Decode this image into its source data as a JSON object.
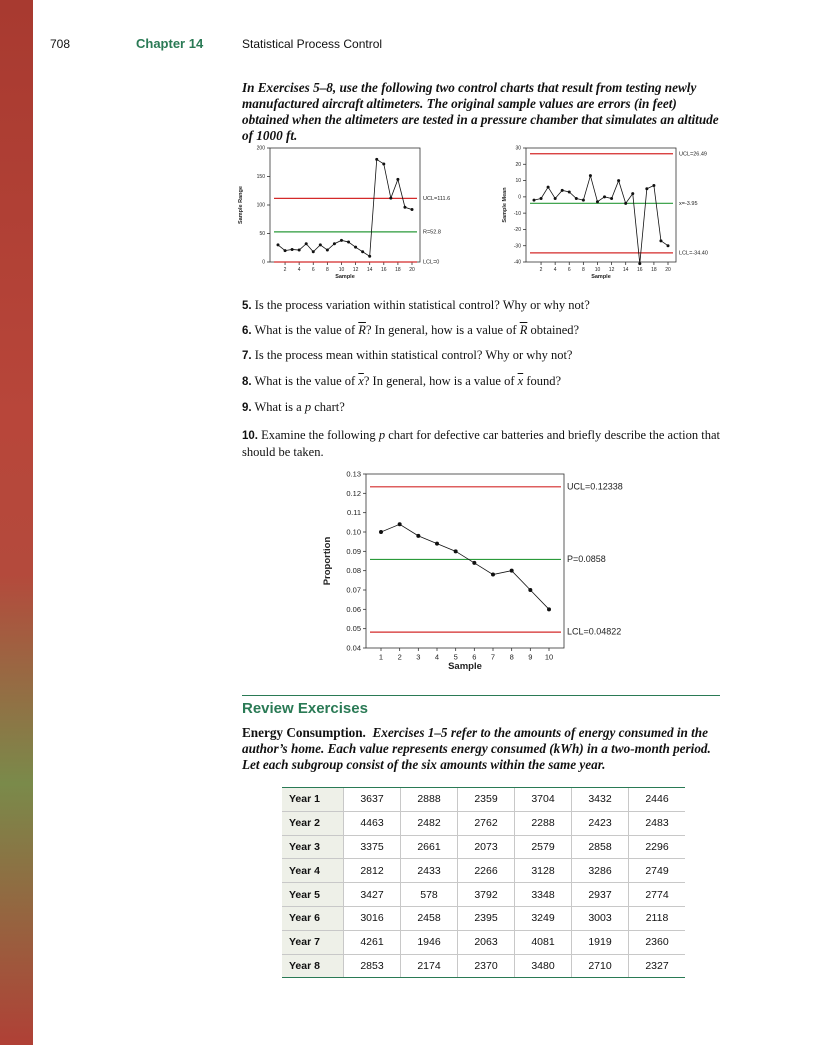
{
  "header": {
    "page_number": "708",
    "chapter": "Chapter 14",
    "title": "Statistical Process Control"
  },
  "intro": "In Exercises 5–8, use the following two control charts that result from testing newly manufactured aircraft altimeters. The original sample values are errors (in feet) obtained when the altimeters are tested in a pressure chamber that simulates an altitude of 1000 ft.",
  "questions": {
    "q5": {
      "num": "5.",
      "text": "Is the process variation within statistical control? Why or why not?"
    },
    "q6": {
      "num": "6.",
      "a": "What is the value of ",
      "sym": "R",
      "b": "? In general, how is a value of ",
      "sym2": "R",
      "c": " obtained?"
    },
    "q7": {
      "num": "7.",
      "text": "Is the process mean within statistical control? Why or why not?"
    },
    "q8": {
      "num": "8.",
      "a": "What is the value of ",
      "sym": "x",
      "b": "? In general, how is a value of ",
      "sym2": "x",
      "c": " found?"
    },
    "q9": {
      "num": "9.",
      "a": "What is a ",
      "sym": "p",
      "b": " chart?"
    },
    "q10": {
      "num": "10.",
      "a": "Examine the following ",
      "sym": "p",
      "b": " chart for defective car batteries and briefly describe the action that should be taken."
    }
  },
  "review": {
    "heading": "Review Exercises",
    "lead": "Energy Consumption.",
    "text": "Exercises 1–5 refer to the amounts of energy consumed in the author’s home. Each value represents energy consumed (kWh) in a two-month period. Let each subgroup consist of the six amounts within the same year.",
    "table": [
      {
        "label": "Year 1",
        "values": [
          "3637",
          "2888",
          "2359",
          "3704",
          "3432",
          "2446"
        ]
      },
      {
        "label": "Year 2",
        "values": [
          "4463",
          "2482",
          "2762",
          "2288",
          "2423",
          "2483"
        ]
      },
      {
        "label": "Year 3",
        "values": [
          "3375",
          "2661",
          "2073",
          "2579",
          "2858",
          "2296"
        ]
      },
      {
        "label": "Year 4",
        "values": [
          "2812",
          "2433",
          "2266",
          "3128",
          "3286",
          "2749"
        ]
      },
      {
        "label": "Year 5",
        "values": [
          "3427",
          "578",
          "3792",
          "3348",
          "2937",
          "2774"
        ]
      },
      {
        "label": "Year 6",
        "values": [
          "3016",
          "2458",
          "2395",
          "3249",
          "3003",
          "2118"
        ]
      },
      {
        "label": "Year 7",
        "values": [
          "4261",
          "1946",
          "2063",
          "4081",
          "1919",
          "2360"
        ]
      },
      {
        "label": "Year 8",
        "values": [
          "2853",
          "2174",
          "2370",
          "3480",
          "2710",
          "2327"
        ]
      }
    ]
  },
  "colors": {
    "accent": "#2a7a55",
    "ucl": "#d42a2a",
    "center": "#2a9a3a"
  },
  "chart_data": [
    {
      "type": "line",
      "title": "",
      "xlabel": "Sample",
      "ylabel": "Sample Range",
      "x": [
        1,
        2,
        3,
        4,
        5,
        6,
        7,
        8,
        9,
        10,
        11,
        12,
        13,
        14,
        15,
        16,
        17,
        18,
        19,
        20
      ],
      "values": [
        30,
        20,
        22,
        21,
        32,
        18,
        30,
        21,
        32,
        38,
        35,
        26,
        18,
        10,
        180,
        172,
        112,
        145,
        96,
        92
      ],
      "ylim": [
        0,
        200
      ],
      "yticks": [
        "0",
        "50",
        "100",
        "150",
        "200"
      ],
      "xticks": [
        "2",
        "4",
        "6",
        "8",
        "10",
        "12",
        "14",
        "16",
        "18",
        "20"
      ],
      "lines": [
        {
          "name": "UCL",
          "value": 111.6,
          "label": "UCL=111.6"
        },
        {
          "name": "center",
          "value": 52.8,
          "label": "R=52.8"
        },
        {
          "name": "LCL",
          "value": 0,
          "label": "LCL=0"
        }
      ]
    },
    {
      "type": "line",
      "title": "",
      "xlabel": "Sample",
      "ylabel": "Sample Mean",
      "x": [
        1,
        2,
        3,
        4,
        5,
        6,
        7,
        8,
        9,
        10,
        11,
        12,
        13,
        14,
        15,
        16,
        17,
        18,
        19,
        20
      ],
      "values": [
        -2,
        -1,
        6,
        -1,
        4,
        3,
        -1,
        -2,
        13,
        -3,
        0,
        -1,
        10,
        -4,
        2,
        -41,
        5,
        7,
        -27,
        -30
      ],
      "ylim": [
        -40,
        30
      ],
      "yticks": [
        "-40",
        "-30",
        "-20",
        "-10",
        "0",
        "10",
        "20",
        "30"
      ],
      "xticks": [
        "2",
        "4",
        "6",
        "8",
        "10",
        "12",
        "14",
        "16",
        "18",
        "20"
      ],
      "lines": [
        {
          "name": "UCL",
          "value": 26.49,
          "label": "UCL=26.49"
        },
        {
          "name": "center",
          "value": -3.95,
          "label": "x=-3.95"
        },
        {
          "name": "LCL",
          "value": -34.4,
          "label": "LCL=-34.40"
        }
      ]
    },
    {
      "type": "line",
      "title": "",
      "xlabel": "Sample",
      "ylabel": "Proportion",
      "x": [
        1,
        2,
        3,
        4,
        5,
        6,
        7,
        8,
        9,
        10
      ],
      "values": [
        0.1,
        0.104,
        0.098,
        0.094,
        0.09,
        0.084,
        0.078,
        0.08,
        0.07,
        0.06
      ],
      "ylim": [
        0.04,
        0.13
      ],
      "yticks": [
        "0.04",
        "0.05",
        "0.06",
        "0.07",
        "0.08",
        "0.09",
        "0.10",
        "0.11",
        "0.12",
        "0.13"
      ],
      "xticks": [
        "1",
        "2",
        "3",
        "4",
        "5",
        "6",
        "7",
        "8",
        "9",
        "10"
      ],
      "lines": [
        {
          "name": "UCL",
          "value": 0.12338,
          "label": "UCL=0.12338"
        },
        {
          "name": "center",
          "value": 0.0858,
          "label": "P=0.0858"
        },
        {
          "name": "LCL",
          "value": 0.04822,
          "label": "LCL=0.04822"
        }
      ]
    }
  ]
}
